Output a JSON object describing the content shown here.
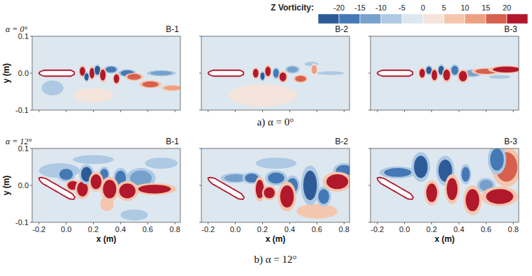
{
  "figure": {
    "colorbar": {
      "title": "Z Vorticity:",
      "range": [
        -25,
        25
      ],
      "ticks": [
        -20,
        -15,
        -10,
        -5,
        0,
        5,
        10,
        15,
        20
      ],
      "colors": [
        "#2c5b98",
        "#4479b5",
        "#76a1cc",
        "#adc9e3",
        "#dde7ef",
        "#f4e4dc",
        "#f5c6ae",
        "#ee9f80",
        "#d6604d",
        "#b2182b"
      ]
    },
    "rows": [
      {
        "label": "α = 0°",
        "caption": "a) α = 0°"
      },
      {
        "label": "α = 12°",
        "caption": "b) α = 12°"
      }
    ]
  },
  "chart_data": [
    {
      "type": "contour",
      "title": "B-1",
      "ylabel": "y (m)",
      "tick_labels": "y",
      "xlim": [
        -0.25,
        0.84
      ],
      "ylim": [
        -0.1,
        0.1
      ],
      "xticks": [
        -0.2,
        {
          "value": 0,
          "label": "0.0"
        },
        0.2,
        0.4,
        0.6,
        0.8
      ],
      "yticks": [
        -0.1,
        {
          "value": 0,
          "label": "0.0"
        },
        0.1
      ],
      "body": {
        "x": [
          -0.2,
          0.06
        ],
        "y": [
          0,
          0
        ],
        "thickness": 0.016
      },
      "vortices": [
        {
          "x": -0.1,
          "y": -0.04,
          "rx": 0.08,
          "ry": 0.02,
          "value": -6
        },
        {
          "x": 0.2,
          "y": -0.06,
          "rx": 0.15,
          "ry": 0.02,
          "value": 3
        },
        {
          "x": 0.12,
          "y": 0.005,
          "rx": 0.02,
          "ry": 0.012,
          "value": 22
        },
        {
          "x": 0.15,
          "y": -0.01,
          "rx": 0.015,
          "ry": 0.01,
          "value": -22
        },
        {
          "x": 0.19,
          "y": 0,
          "rx": 0.018,
          "ry": 0.014,
          "value": 22
        },
        {
          "x": 0.23,
          "y": 0.008,
          "rx": 0.02,
          "ry": 0.012,
          "value": -22
        },
        {
          "x": 0.27,
          "y": -0.005,
          "rx": 0.02,
          "ry": 0.015,
          "value": 22
        },
        {
          "x": 0.33,
          "y": 0.01,
          "rx": 0.04,
          "ry": 0.008,
          "value": -18
        },
        {
          "x": 0.37,
          "y": -0.015,
          "rx": 0.02,
          "ry": 0.012,
          "value": 22
        },
        {
          "x": 0.45,
          "y": 0,
          "rx": 0.05,
          "ry": 0.008,
          "value": -18
        },
        {
          "x": 0.5,
          "y": -0.01,
          "rx": 0.05,
          "ry": 0.008,
          "value": 18
        },
        {
          "x": 0.62,
          "y": -0.03,
          "rx": 0.06,
          "ry": 0.008,
          "value": 18
        },
        {
          "x": 0.7,
          "y": 0,
          "rx": 0.08,
          "ry": 0.006,
          "value": -12
        },
        {
          "x": 0.78,
          "y": -0.04,
          "rx": 0.06,
          "ry": 0.006,
          "value": 12
        }
      ]
    },
    {
      "type": "contour",
      "title": "B-2",
      "tick_labels": false,
      "xlim": [
        -0.25,
        0.84
      ],
      "ylim": [
        -0.1,
        0.1
      ],
      "xticks": [
        -0.2,
        {
          "value": 0,
          "label": "0.0"
        },
        0.2,
        0.4,
        0.6,
        0.8
      ],
      "yticks": [
        -0.1,
        {
          "value": 0,
          "label": "0.0"
        },
        0.1
      ],
      "body": {
        "x": [
          -0.2,
          0.06
        ],
        "y": [
          0,
          0
        ],
        "thickness": 0.016
      },
      "vortices": [
        {
          "x": 0.2,
          "y": -0.06,
          "rx": 0.25,
          "ry": 0.03,
          "value": 4
        },
        {
          "x": 0.15,
          "y": 0,
          "rx": 0.02,
          "ry": 0.012,
          "value": 22
        },
        {
          "x": 0.2,
          "y": -0.008,
          "rx": 0.015,
          "ry": 0.01,
          "value": -22
        },
        {
          "x": 0.24,
          "y": 0.005,
          "rx": 0.02,
          "ry": 0.013,
          "value": 22
        },
        {
          "x": 0.3,
          "y": 0,
          "rx": 0.02,
          "ry": 0.012,
          "value": -20
        },
        {
          "x": 0.35,
          "y": -0.01,
          "rx": 0.025,
          "ry": 0.012,
          "value": 22
        },
        {
          "x": 0.42,
          "y": 0.01,
          "rx": 0.04,
          "ry": 0.008,
          "value": -15
        },
        {
          "x": 0.48,
          "y": -0.015,
          "rx": 0.04,
          "ry": 0.008,
          "value": 15
        },
        {
          "x": 0.56,
          "y": 0.025,
          "rx": 0.05,
          "ry": 0.006,
          "value": -8
        },
        {
          "x": 0.58,
          "y": 0.01,
          "rx": 0.02,
          "ry": 0.012,
          "value": 10
        },
        {
          "x": 0.7,
          "y": 0,
          "rx": 0.1,
          "ry": 0.005,
          "value": -6
        }
      ]
    },
    {
      "type": "contour",
      "title": "B-3",
      "tick_labels": false,
      "xlim": [
        -0.25,
        0.84
      ],
      "ylim": [
        -0.1,
        0.1
      ],
      "xticks": [
        -0.2,
        {
          "value": 0,
          "label": "0.0"
        },
        0.2,
        0.4,
        0.6,
        0.8
      ],
      "yticks": [
        -0.1,
        {
          "value": 0,
          "label": "0.0"
        },
        0.1
      ],
      "body": {
        "x": [
          -0.2,
          0.06
        ],
        "y": [
          0,
          0
        ],
        "thickness": 0.016
      },
      "vortices": [
        {
          "x": 0.13,
          "y": 0,
          "rx": 0.02,
          "ry": 0.012,
          "value": 22
        },
        {
          "x": 0.18,
          "y": 0.008,
          "rx": 0.02,
          "ry": 0.01,
          "value": -22
        },
        {
          "x": 0.22,
          "y": -0.005,
          "rx": 0.02,
          "ry": 0.014,
          "value": 22
        },
        {
          "x": 0.27,
          "y": 0.008,
          "rx": 0.02,
          "ry": 0.012,
          "value": -22
        },
        {
          "x": 0.31,
          "y": -0.005,
          "rx": 0.025,
          "ry": 0.015,
          "value": 22
        },
        {
          "x": 0.37,
          "y": 0.008,
          "rx": 0.025,
          "ry": 0.012,
          "value": -20
        },
        {
          "x": 0.43,
          "y": -0.008,
          "rx": 0.03,
          "ry": 0.014,
          "value": 22
        },
        {
          "x": 0.5,
          "y": 0,
          "rx": 0.05,
          "ry": 0.008,
          "value": -15
        },
        {
          "x": 0.6,
          "y": 0.005,
          "rx": 0.08,
          "ry": 0.007,
          "value": 15
        },
        {
          "x": 0.7,
          "y": -0.01,
          "rx": 0.08,
          "ry": 0.005,
          "value": -10
        },
        {
          "x": 0.75,
          "y": 0.01,
          "rx": 0.1,
          "ry": 0.008,
          "value": 20
        }
      ]
    },
    {
      "type": "contour",
      "title": "B-1",
      "xlabel": "x (m)",
      "ylabel": "y (m)",
      "tick_labels": true,
      "xlim": [
        -0.25,
        0.84
      ],
      "ylim": [
        -0.1,
        0.1
      ],
      "xticks": [
        -0.2,
        {
          "value": 0,
          "label": "0.0"
        },
        0.2,
        0.4,
        0.6,
        0.8
      ],
      "yticks": [
        -0.1,
        {
          "value": 0,
          "label": "0.0"
        },
        0.1
      ],
      "body": {
        "x": [
          -0.2,
          0.06
        ],
        "y": [
          0.02,
          -0.035
        ],
        "thickness": 0.016
      },
      "vortices": [
        {
          "x": -0.05,
          "y": 0.04,
          "rx": 0.15,
          "ry": 0.02,
          "value": -6
        },
        {
          "x": 0.2,
          "y": 0.07,
          "rx": 0.15,
          "ry": 0.012,
          "value": -8
        },
        {
          "x": 0.3,
          "y": -0.05,
          "rx": 0.05,
          "ry": 0.02,
          "value": 8
        },
        {
          "x": 0.5,
          "y": -0.08,
          "rx": 0.1,
          "ry": 0.015,
          "value": -6
        },
        {
          "x": 0,
          "y": -0.08,
          "rx": 0.1,
          "ry": 0.015,
          "value": -5
        },
        {
          "x": 0,
          "y": 0.03,
          "rx": 0.05,
          "ry": 0.015,
          "value": -20
        },
        {
          "x": 0.05,
          "y": 0,
          "rx": 0.04,
          "ry": 0.012,
          "value": 20
        },
        {
          "x": 0.12,
          "y": -0.01,
          "rx": 0.04,
          "ry": 0.02,
          "value": 22
        },
        {
          "x": 0.15,
          "y": 0.03,
          "rx": 0.04,
          "ry": 0.02,
          "value": -22
        },
        {
          "x": 0.22,
          "y": 0.01,
          "rx": 0.04,
          "ry": 0.02,
          "value": 22
        },
        {
          "x": 0.28,
          "y": 0.03,
          "rx": 0.03,
          "ry": 0.015,
          "value": -20
        },
        {
          "x": 0.32,
          "y": -0.01,
          "rx": 0.05,
          "ry": 0.025,
          "value": 22
        },
        {
          "x": 0.4,
          "y": 0.02,
          "rx": 0.04,
          "ry": 0.02,
          "value": -18
        },
        {
          "x": 0.45,
          "y": -0.015,
          "rx": 0.06,
          "ry": 0.02,
          "value": 22
        },
        {
          "x": 0.55,
          "y": 0.02,
          "rx": 0.08,
          "ry": 0.02,
          "value": -15
        },
        {
          "x": 0.65,
          "y": -0.01,
          "rx": 0.12,
          "ry": 0.012,
          "value": 20
        },
        {
          "x": 0.7,
          "y": 0.06,
          "rx": 0.12,
          "ry": 0.015,
          "value": -10
        }
      ]
    },
    {
      "type": "contour",
      "title": "B-2",
      "xlabel": "x (m)",
      "tick_labels": "x",
      "xlim": [
        -0.25,
        0.84
      ],
      "ylim": [
        -0.1,
        0.1
      ],
      "xticks": [
        -0.2,
        {
          "value": 0,
          "label": "0.0"
        },
        0.2,
        0.4,
        0.6,
        0.8
      ],
      "yticks": [
        -0.1,
        {
          "value": 0,
          "label": "0.0"
        },
        0.1
      ],
      "body": {
        "x": [
          -0.2,
          0.06
        ],
        "y": [
          0.02,
          -0.035
        ],
        "thickness": 0.016
      },
      "vortices": [
        {
          "x": 0.3,
          "y": 0.06,
          "rx": 0.15,
          "ry": 0.015,
          "value": -8
        },
        {
          "x": 0.6,
          "y": -0.07,
          "rx": 0.15,
          "ry": 0.02,
          "value": 5
        },
        {
          "x": 0,
          "y": 0.02,
          "rx": 0.08,
          "ry": 0.01,
          "value": -15
        },
        {
          "x": 0.12,
          "y": 0.02,
          "rx": 0.05,
          "ry": 0.012,
          "value": -20
        },
        {
          "x": 0.18,
          "y": -0.01,
          "rx": 0.03,
          "ry": 0.025,
          "value": 22
        },
        {
          "x": 0.25,
          "y": -0.02,
          "rx": 0.04,
          "ry": 0.015,
          "value": 22
        },
        {
          "x": 0.3,
          "y": 0.02,
          "rx": 0.06,
          "ry": 0.015,
          "value": -20
        },
        {
          "x": 0.38,
          "y": -0.03,
          "rx": 0.05,
          "ry": 0.03,
          "value": 22
        },
        {
          "x": 0.42,
          "y": 0,
          "rx": 0.04,
          "ry": 0.02,
          "value": -18
        },
        {
          "x": 0.55,
          "y": 0,
          "rx": 0.05,
          "ry": 0.04,
          "value": -22
        },
        {
          "x": 0.65,
          "y": -0.03,
          "rx": 0.04,
          "ry": 0.02,
          "value": -20
        },
        {
          "x": 0.75,
          "y": 0.01,
          "rx": 0.08,
          "ry": 0.02,
          "value": 20
        },
        {
          "x": 0.8,
          "y": 0.04,
          "rx": 0.06,
          "ry": 0.015,
          "value": -18
        }
      ]
    },
    {
      "type": "contour",
      "title": "B-3",
      "xlabel": "x (m)",
      "tick_labels": "x",
      "xlim": [
        -0.25,
        0.84
      ],
      "ylim": [
        -0.1,
        0.1
      ],
      "xticks": [
        -0.2,
        {
          "value": 0,
          "label": "0.0"
        },
        0.2,
        0.4,
        0.6,
        0.8
      ],
      "yticks": [
        -0.1,
        {
          "value": 0,
          "label": "0.0"
        },
        0.1
      ],
      "body": {
        "x": [
          -0.2,
          0.06
        ],
        "y": [
          0.02,
          -0.035
        ],
        "thickness": 0.016
      },
      "vortices": [
        {
          "x": 0,
          "y": -0.07,
          "rx": 0.1,
          "ry": 0.02,
          "value": -5
        },
        {
          "x": -0.05,
          "y": 0.035,
          "rx": 0.1,
          "ry": 0.012,
          "value": -18
        },
        {
          "x": 0.12,
          "y": 0.05,
          "rx": 0.05,
          "ry": 0.03,
          "value": -22
        },
        {
          "x": 0.2,
          "y": -0.02,
          "rx": 0.04,
          "ry": 0.025,
          "value": 22
        },
        {
          "x": 0.3,
          "y": 0.04,
          "rx": 0.05,
          "ry": 0.03,
          "value": -22
        },
        {
          "x": 0.35,
          "y": -0.01,
          "rx": 0.04,
          "ry": 0.03,
          "value": 22
        },
        {
          "x": 0.45,
          "y": 0.03,
          "rx": 0.03,
          "ry": 0.02,
          "value": -20
        },
        {
          "x": 0.5,
          "y": -0.04,
          "rx": 0.05,
          "ry": 0.03,
          "value": 22
        },
        {
          "x": 0.6,
          "y": 0,
          "rx": 0.05,
          "ry": 0.015,
          "value": -15
        },
        {
          "x": 0.7,
          "y": -0.03,
          "rx": 0.1,
          "ry": 0.02,
          "value": 20
        },
        {
          "x": 0.75,
          "y": 0.05,
          "rx": 0.08,
          "ry": 0.04,
          "value": 15
        },
        {
          "x": 0.68,
          "y": 0.07,
          "rx": 0.05,
          "ry": 0.03,
          "value": -20
        }
      ]
    }
  ]
}
